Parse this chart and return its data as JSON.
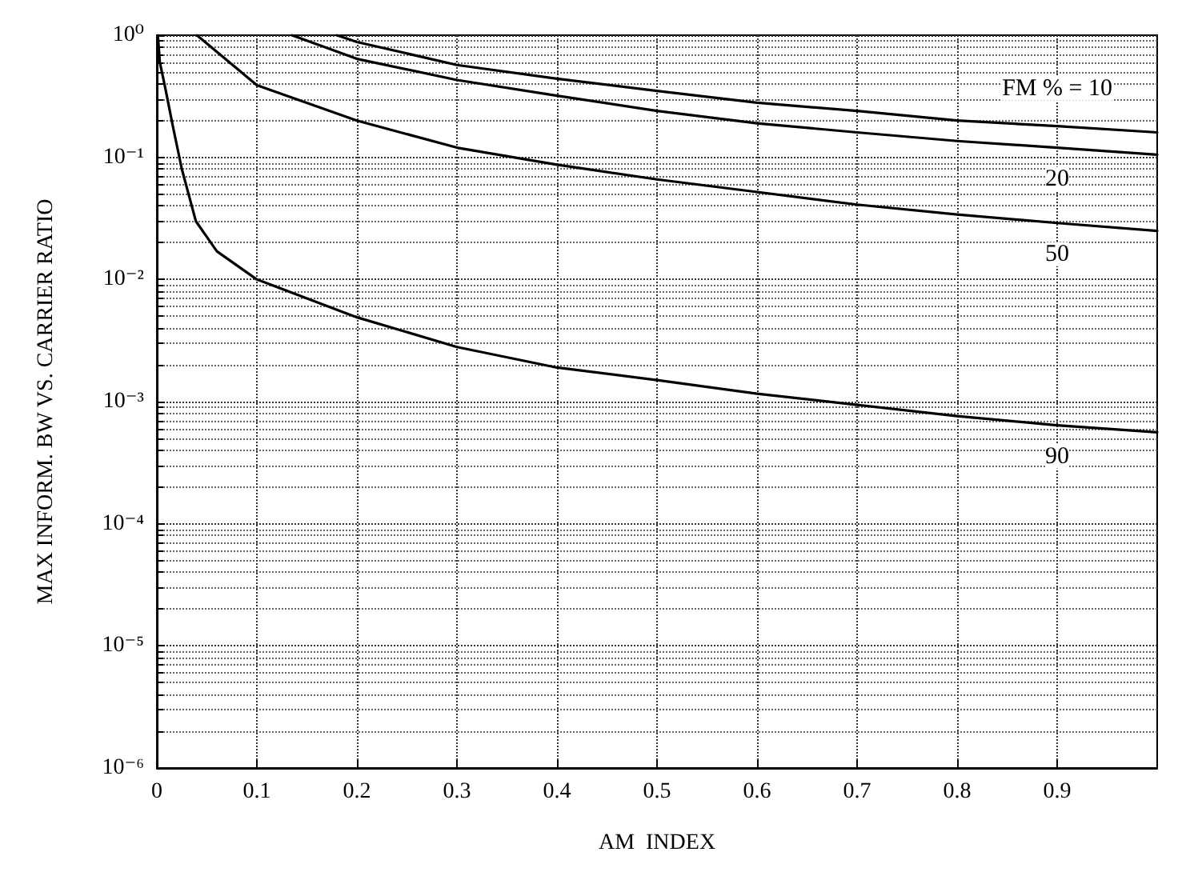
{
  "chart_data": {
    "type": "line",
    "xlabel": "AM  INDEX",
    "ylabel": "MAX INFORM. BW VS. CARRIER RATIO",
    "xlim": [
      0,
      1
    ],
    "xticks": [
      0,
      0.1,
      0.2,
      0.3,
      0.4,
      0.5,
      0.6,
      0.7,
      0.8,
      0.9
    ],
    "ylim": [
      1e-06,
      1
    ],
    "log": "y",
    "yticks": [
      {
        "value": 1e-06,
        "label": "10⁻⁶"
      },
      {
        "value": 1e-05,
        "label": "10⁻⁵"
      },
      {
        "value": 0.0001,
        "label": "10⁻⁴"
      },
      {
        "value": 0.001,
        "label": "10⁻³"
      },
      {
        "value": 0.01,
        "label": "10⁻²"
      },
      {
        "value": 0.1,
        "label": "10⁻¹"
      },
      {
        "value": 1,
        "label": "10⁰"
      }
    ],
    "grid": true,
    "legend": false,
    "series": [
      {
        "name": "FM % = 10",
        "color": "#000000",
        "x": [
          0.18,
          0.2,
          0.3,
          0.4,
          0.5,
          0.6,
          0.7,
          0.8,
          0.9,
          1.0
        ],
        "values": [
          1,
          0.88,
          0.57,
          0.44,
          0.35,
          0.28,
          0.24,
          0.2,
          0.18,
          0.16
        ]
      },
      {
        "name": "20",
        "color": "#000000",
        "x": [
          0.135,
          0.2,
          0.3,
          0.4,
          0.5,
          0.6,
          0.7,
          0.8,
          0.9,
          1.0
        ],
        "values": [
          1,
          0.64,
          0.43,
          0.32,
          0.24,
          0.19,
          0.16,
          0.136,
          0.12,
          0.105
        ]
      },
      {
        "name": "50",
        "color": "#000000",
        "x": [
          0.04,
          0.1,
          0.2,
          0.3,
          0.4,
          0.5,
          0.6,
          0.7,
          0.8,
          0.9,
          1.0
        ],
        "values": [
          1,
          0.39,
          0.2,
          0.12,
          0.087,
          0.066,
          0.052,
          0.041,
          0.034,
          0.029,
          0.025
        ]
      },
      {
        "name": "90",
        "color": "#000000",
        "x": [
          0.001,
          0.003,
          0.009,
          0.016,
          0.025,
          0.039,
          0.06,
          0.1,
          0.2,
          0.3,
          0.4,
          0.5,
          0.6,
          0.7,
          0.8,
          0.9,
          1.0
        ],
        "values": [
          1,
          0.6,
          0.35,
          0.18,
          0.08,
          0.03,
          0.017,
          0.01,
          0.0049,
          0.0028,
          0.0019,
          0.0015,
          0.00116,
          0.00094,
          0.00076,
          0.00064,
          0.00056
        ]
      }
    ]
  }
}
